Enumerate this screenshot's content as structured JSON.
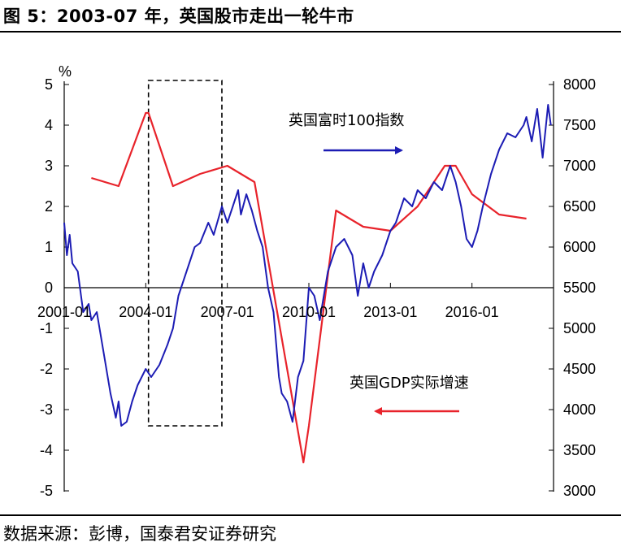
{
  "title": "图 5：2003-07 年，英国股市走出一轮牛市",
  "source": "数据来源：彭博，国泰君安证券研究",
  "colors": {
    "ftse": "#1c1cb4",
    "gdp": "#e8232b",
    "axis": "#000000"
  },
  "chart_data": {
    "type": "line",
    "left_axis": {
      "unit_label": "%",
      "min": -5,
      "max": 5,
      "ticks": [
        "5",
        "4",
        "3",
        "2",
        "1",
        "0",
        "-1",
        "-2",
        "-3",
        "-4",
        "-5"
      ]
    },
    "right_axis": {
      "min": 3000,
      "max": 8000,
      "ticks": [
        "8000",
        "7500",
        "7000",
        "6500",
        "6000",
        "5500",
        "5000",
        "4500",
        "4000",
        "3500",
        "3000"
      ]
    },
    "x_axis": {
      "start": 2001.0,
      "end": 2019.0,
      "ticks": [
        {
          "x": 2001.0,
          "label": "2001-01"
        },
        {
          "x": 2004.0,
          "label": "2004-01"
        },
        {
          "x": 2007.0,
          "label": "2007-01"
        },
        {
          "x": 2010.0,
          "label": "2010-01"
        },
        {
          "x": 2013.0,
          "label": "2013-01"
        },
        {
          "x": 2016.0,
          "label": "2016-01"
        }
      ]
    },
    "highlight_box": {
      "x_start": 2004.1,
      "x_end": 2006.8,
      "y_top": 5.1,
      "y_bottom": -3.4
    },
    "annotations": {
      "ftse_label": "英国富时100指数",
      "gdp_label": "英国GDP实际增速"
    },
    "series": [
      {
        "name": "英国GDP实际增速",
        "axis": "left",
        "color": "#e8232b",
        "x": [
          2002.0,
          2003.0,
          2004.0,
          2004.1,
          2005.0,
          2006.0,
          2007.0,
          2008.0,
          2009.8,
          2010.0,
          2011.0,
          2012.0,
          2013.0,
          2014.0,
          2015.0,
          2015.4,
          2016.0,
          2017.0,
          2018.0
        ],
        "values": [
          2.7,
          2.5,
          4.3,
          4.3,
          2.5,
          2.8,
          3.0,
          2.6,
          -4.3,
          -3.4,
          1.9,
          1.5,
          1.4,
          2.0,
          3.0,
          3.0,
          2.3,
          1.8,
          1.7
        ]
      },
      {
        "name": "英国富时100指数",
        "axis": "right",
        "color": "#1c1cb4",
        "x": [
          2001.0,
          2001.1,
          2001.2,
          2001.3,
          2001.5,
          2001.7,
          2001.9,
          2002.0,
          2002.2,
          2002.5,
          2002.7,
          2002.9,
          2003.0,
          2003.1,
          2003.3,
          2003.5,
          2003.7,
          2004.0,
          2004.2,
          2004.5,
          2004.8,
          2005.0,
          2005.2,
          2005.5,
          2005.8,
          2006.0,
          2006.3,
          2006.5,
          2006.8,
          2007.0,
          2007.2,
          2007.4,
          2007.5,
          2007.7,
          2007.9,
          2008.1,
          2008.3,
          2008.5,
          2008.7,
          2008.9,
          2009.0,
          2009.2,
          2009.4,
          2009.6,
          2009.8,
          2010.0,
          2010.2,
          2010.4,
          2010.5,
          2010.7,
          2011.0,
          2011.3,
          2011.6,
          2011.8,
          2012.0,
          2012.2,
          2012.4,
          2012.7,
          2013.0,
          2013.2,
          2013.5,
          2013.8,
          2014.0,
          2014.3,
          2014.6,
          2014.9,
          2015.2,
          2015.4,
          2015.6,
          2015.8,
          2016.0,
          2016.2,
          2016.4,
          2016.7,
          2017.0,
          2017.3,
          2017.6,
          2017.9,
          2018.0,
          2018.2,
          2018.4,
          2018.6,
          2018.8,
          2018.9
        ],
        "values": [
          6300,
          5900,
          6150,
          5800,
          5700,
          5200,
          5300,
          5100,
          5200,
          4600,
          4200,
          3900,
          4100,
          3800,
          3850,
          4100,
          4300,
          4500,
          4400,
          4550,
          4800,
          5000,
          5400,
          5700,
          6000,
          6050,
          6300,
          6150,
          6500,
          6300,
          6500,
          6700,
          6400,
          6650,
          6450,
          6200,
          6000,
          5500,
          5200,
          4400,
          4200,
          4100,
          3850,
          4400,
          4600,
          5500,
          5400,
          5100,
          5300,
          5700,
          6000,
          6100,
          5900,
          5400,
          5800,
          5500,
          5700,
          5900,
          6200,
          6300,
          6600,
          6500,
          6700,
          6600,
          6800,
          6700,
          7000,
          6800,
          6500,
          6100,
          6000,
          6200,
          6500,
          6900,
          7200,
          7400,
          7350,
          7500,
          7600,
          7300,
          7700,
          7100,
          7750,
          7500
        ]
      }
    ]
  }
}
